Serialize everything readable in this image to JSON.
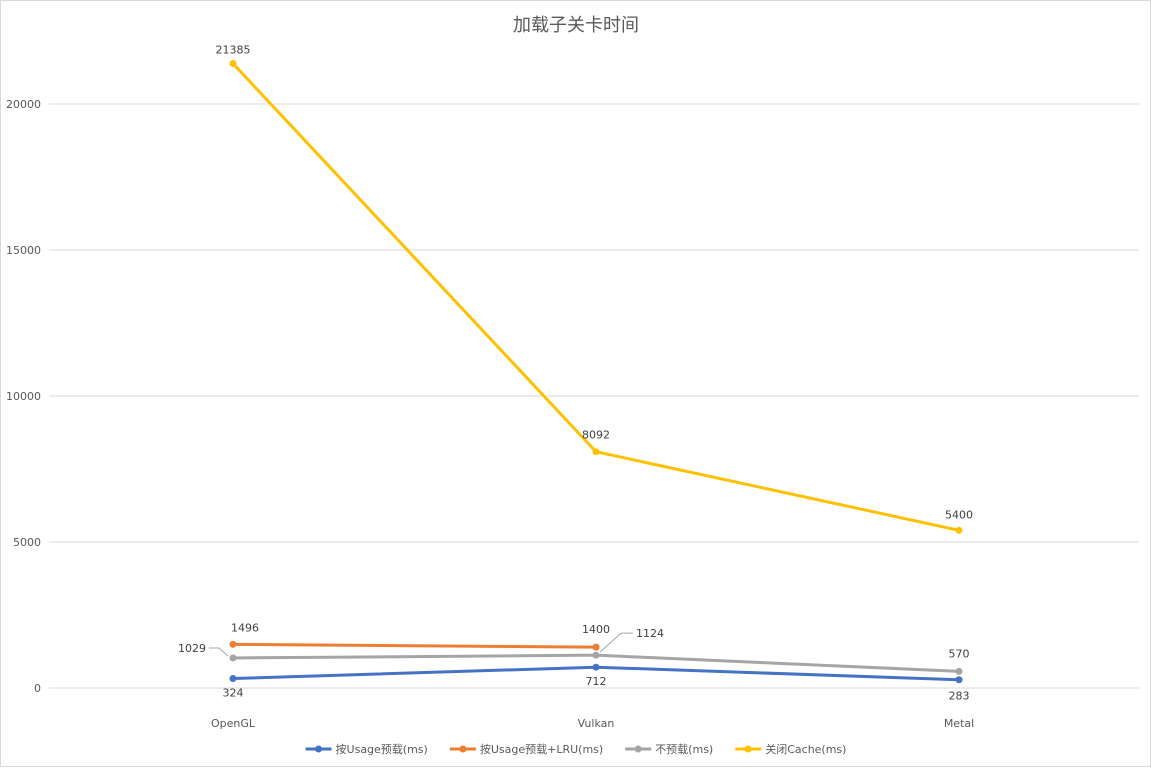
{
  "chart_data": {
    "type": "line",
    "title": "加载子关卡时间",
    "xlabel": "",
    "ylabel": "",
    "categories": [
      "OpenGL",
      "Vulkan",
      "Metal"
    ],
    "ylim": [
      0,
      22500
    ],
    "yticks": [
      0,
      5000,
      10000,
      15000,
      20000
    ],
    "grid": true,
    "legend_position": "bottom",
    "series": [
      {
        "name": "按Usage预载(ms)",
        "color": "#4472c4",
        "values": [
          324,
          712,
          283
        ]
      },
      {
        "name": "按Usage预载+LRU(ms)",
        "color": "#ed7d31",
        "values": [
          1496,
          1400,
          null
        ]
      },
      {
        "name": "不预载(ms)",
        "color": "#a5a5a5",
        "values": [
          1029,
          1124,
          570
        ]
      },
      {
        "name": "关闭Cache(ms)",
        "color": "#ffc000",
        "values": [
          21385,
          8092,
          5400
        ]
      }
    ]
  }
}
